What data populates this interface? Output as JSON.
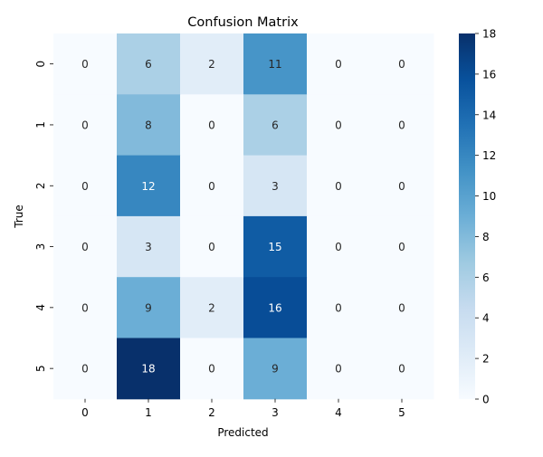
{
  "chart_data": {
    "type": "heatmap",
    "title": "Confusion Matrix",
    "xlabel": "Predicted",
    "ylabel": "True",
    "x_categories": [
      "0",
      "1",
      "2",
      "3",
      "4",
      "5"
    ],
    "y_categories": [
      "0",
      "1",
      "2",
      "3",
      "4",
      "5"
    ],
    "values": [
      [
        0,
        6,
        2,
        11,
        0,
        0
      ],
      [
        0,
        8,
        0,
        6,
        0,
        0
      ],
      [
        0,
        12,
        0,
        3,
        0,
        0
      ],
      [
        0,
        3,
        0,
        15,
        0,
        0
      ],
      [
        0,
        9,
        2,
        16,
        0,
        0
      ],
      [
        0,
        18,
        0,
        9,
        0,
        0
      ]
    ],
    "colormap": "Blues",
    "vmin": 0,
    "vmax": 18,
    "colorbar_ticks": [
      0,
      2,
      4,
      6,
      8,
      10,
      12,
      14,
      16,
      18
    ]
  }
}
